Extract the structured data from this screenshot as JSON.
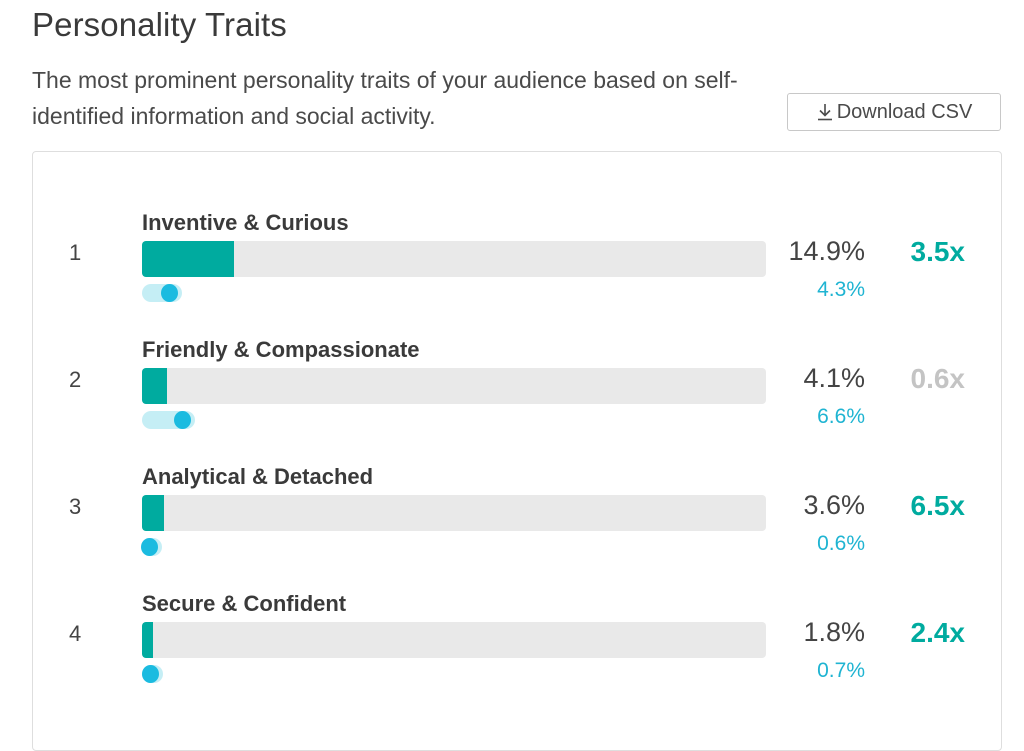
{
  "header": {
    "title": "Personality Traits",
    "subtitle": "The most prominent personality traits of your audience based on self-identified information and social activity.",
    "download_label": "Download CSV",
    "download_icon": "download-icon"
  },
  "colors": {
    "bar_fill": "#00ab9f",
    "bar_track": "#e9e9e9",
    "baseline_dot": "#1bbbe0",
    "baseline_track": "#c5eef5",
    "baseline_text": "#1fb4d2",
    "index_high": "#00ab9f",
    "index_low": "#c4c4c4"
  },
  "traits": [
    {
      "rank": "1",
      "label": "Inventive & Curious",
      "percent": "14.9%",
      "percent_value": 14.9,
      "baseline": "4.3%",
      "baseline_value": 4.3,
      "index": "3.5x",
      "index_level": "high"
    },
    {
      "rank": "2",
      "label": "Friendly & Compassionate",
      "percent": "4.1%",
      "percent_value": 4.1,
      "baseline": "6.6%",
      "baseline_value": 6.6,
      "index": "0.6x",
      "index_level": "low"
    },
    {
      "rank": "3",
      "label": "Analytical & Detached",
      "percent": "3.6%",
      "percent_value": 3.6,
      "baseline": "0.6%",
      "baseline_value": 0.6,
      "index": "6.5x",
      "index_level": "high"
    },
    {
      "rank": "4",
      "label": "Secure & Confident",
      "percent": "1.8%",
      "percent_value": 1.8,
      "baseline": "0.7%",
      "baseline_value": 0.7,
      "index": "2.4x",
      "index_level": "high"
    }
  ]
}
